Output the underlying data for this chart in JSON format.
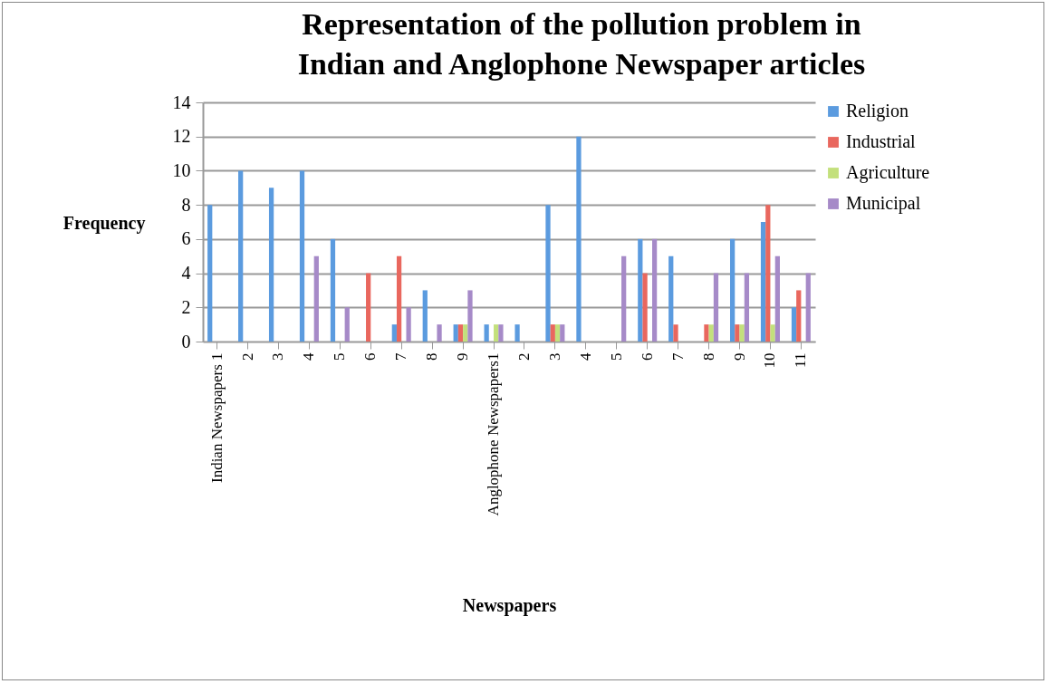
{
  "chart_data": {
    "type": "bar",
    "title": "Representation of the pollution problem in Indian and Anglophone Newspaper articles",
    "xlabel": "Newspapers",
    "ylabel": "Frequency",
    "categories": [
      "Indian Newspapers 1",
      "2",
      "3",
      "4",
      "5",
      "6",
      "7",
      "8",
      "9",
      "Anglophone Newspapers1",
      "2",
      "3",
      "4",
      "5",
      "6",
      "7",
      "8",
      "9",
      "10",
      "11"
    ],
    "series": [
      {
        "name": "Religion",
        "color": "#5b9bdf",
        "values": [
          8,
          10,
          9,
          10,
          6,
          0,
          1,
          3,
          1,
          1,
          1,
          8,
          12,
          0,
          6,
          5,
          0,
          6,
          7,
          2
        ]
      },
      {
        "name": "Industrial",
        "color": "#e9675e",
        "values": [
          0,
          0,
          0,
          0,
          0,
          4,
          5,
          0,
          1,
          0,
          0,
          1,
          0,
          0,
          4,
          1,
          1,
          1,
          8,
          3
        ]
      },
      {
        "name": "Agriculture",
        "color": "#c3e07c",
        "values": [
          0,
          0,
          0,
          0,
          0,
          0,
          0,
          0,
          1,
          1,
          0,
          1,
          0,
          0,
          0,
          0,
          1,
          1,
          1,
          0
        ]
      },
      {
        "name": "Municipal",
        "color": "#a68ac8",
        "values": [
          0,
          0,
          0,
          5,
          2,
          0,
          2,
          1,
          3,
          1,
          0,
          1,
          0,
          5,
          6,
          0,
          4,
          4,
          5,
          4
        ]
      }
    ],
    "ylim": [
      0,
      14
    ],
    "yticks": [
      0,
      2,
      4,
      6,
      8,
      10,
      12,
      14
    ],
    "grid": "y",
    "legend": "right"
  }
}
